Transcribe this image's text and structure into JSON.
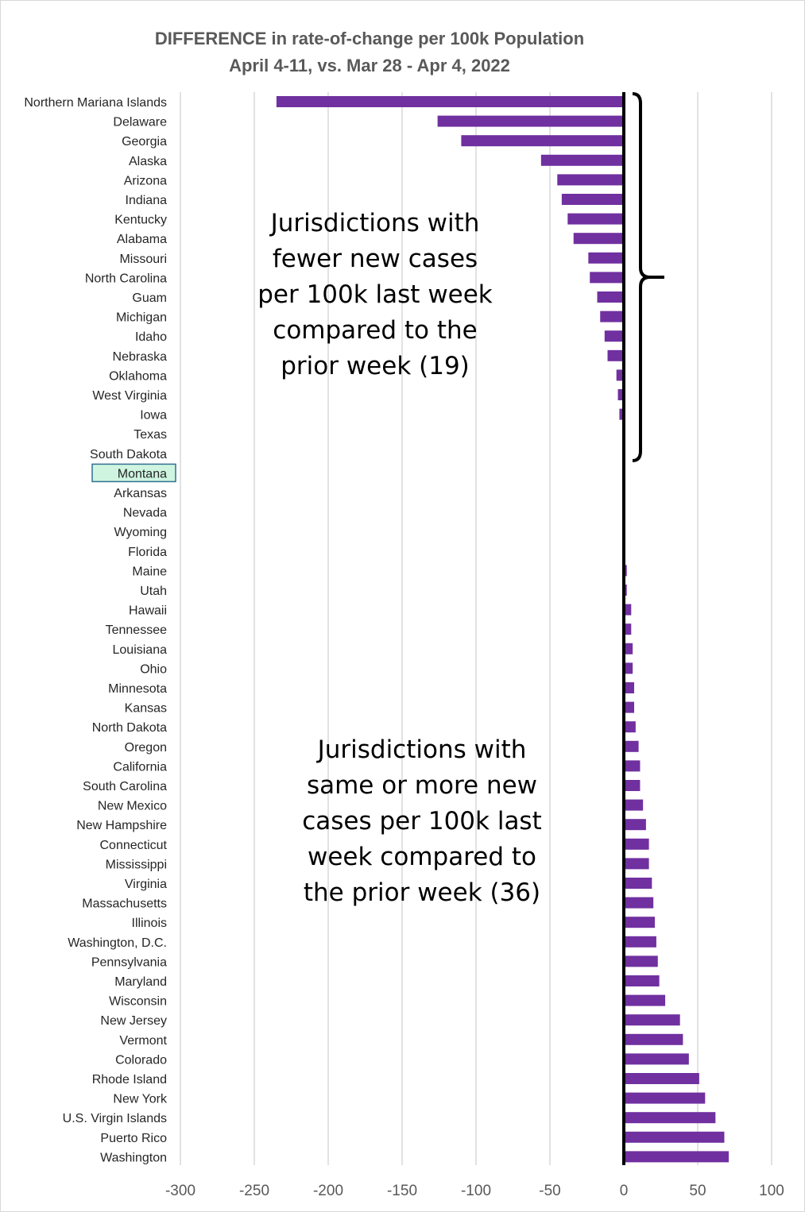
{
  "chart_data": {
    "type": "bar",
    "orientation": "horizontal",
    "title": "DIFFERENCE in rate-of-change per 100k Population",
    "subtitle": "April 4-11, vs. Mar 28 - Apr 4, 2022",
    "xlabel": "",
    "ylabel": "",
    "xlim": [
      -300,
      100
    ],
    "xticks": [
      -300,
      -250,
      -200,
      -150,
      -100,
      -50,
      0,
      50,
      100
    ],
    "grid": true,
    "bar_color": "#7030a0",
    "highlight_color": "#cff5e1",
    "highlight_border": "#31708f",
    "highlighted_category": "Montana",
    "categories": [
      "Northern Mariana Islands",
      "Delaware",
      "Georgia",
      "Alaska",
      "Arizona",
      "Indiana",
      "Kentucky",
      "Alabama",
      "Missouri",
      "North Carolina",
      "Guam",
      "Michigan",
      "Idaho",
      "Nebraska",
      "Oklahoma",
      "West Virginia",
      "Iowa",
      "Texas",
      "South Dakota",
      "Montana",
      "Arkansas",
      "Nevada",
      "Wyoming",
      "Florida",
      "Maine",
      "Utah",
      "Hawaii",
      "Tennessee",
      "Louisiana",
      "Ohio",
      "Minnesota",
      "Kansas",
      "North Dakota",
      "Oregon",
      "California",
      "South Carolina",
      "New Mexico",
      "New Hampshire",
      "Connecticut",
      "Mississippi",
      "Virginia",
      "Massachusetts",
      "Illinois",
      "Washington, D.C.",
      "Pennsylvania",
      "Maryland",
      "Wisconsin",
      "New Jersey",
      "Vermont",
      "Colorado",
      "Rhode Island",
      "New York",
      "U.S. Virgin Islands",
      "Puerto Rico",
      "Washington"
    ],
    "values": [
      -235,
      -126,
      -110,
      -56,
      -45,
      -42,
      -38,
      -34,
      -24,
      -23,
      -18,
      -16,
      -13,
      -11,
      -5,
      -4,
      -3,
      -1,
      -1,
      0,
      0,
      0,
      0,
      0,
      2,
      2,
      5,
      5,
      6,
      6,
      7,
      7,
      8,
      10,
      11,
      11,
      13,
      15,
      17,
      17,
      19,
      20,
      21,
      22,
      23,
      24,
      28,
      38,
      40,
      44,
      51,
      55,
      62,
      68,
      71
    ],
    "annotations": [
      {
        "id": "fewer",
        "lines": [
          "Jurisdictions with",
          "fewer new cases",
          "per 100k last week",
          "compared to the",
          "prior week (19)"
        ]
      },
      {
        "id": "more",
        "lines": [
          "Jurisdictions with",
          "same or more new",
          "cases per 100k last",
          "week compared to",
          "the prior week (36)"
        ]
      }
    ]
  }
}
